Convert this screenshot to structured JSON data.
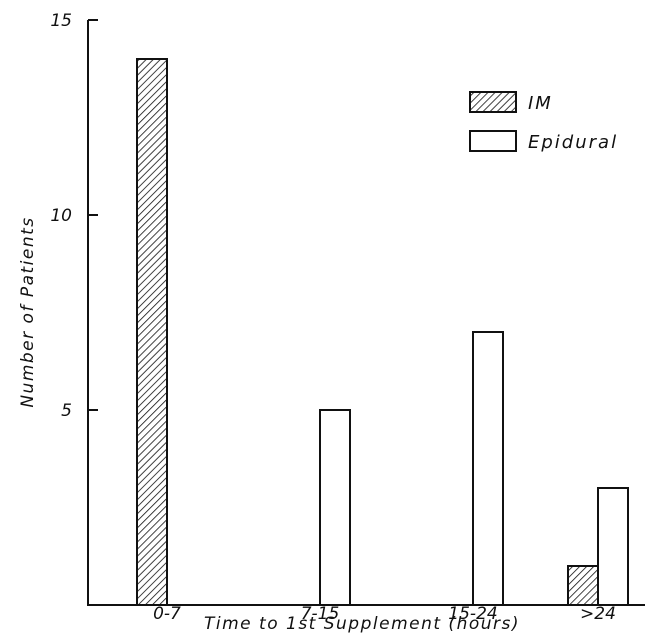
{
  "chart_data": {
    "type": "bar",
    "categories": [
      "0-7",
      "7-15",
      "15-24",
      ">24"
    ],
    "series": [
      {
        "name": "IM",
        "values": [
          14,
          0,
          0,
          1
        ],
        "pattern": "hatched"
      },
      {
        "name": "Epidural",
        "values": [
          0,
          5,
          7,
          3
        ],
        "pattern": "open"
      }
    ],
    "xlabel": "Time to 1st Supplement (hours)",
    "ylabel": "Number of Patients",
    "ylim": [
      0,
      15
    ],
    "yticks": [
      5,
      10,
      15
    ],
    "grid": false,
    "legend": "top-right"
  }
}
